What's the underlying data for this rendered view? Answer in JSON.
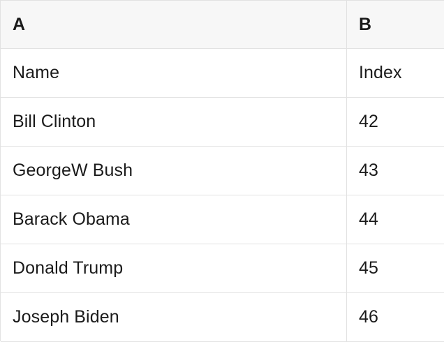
{
  "table": {
    "header": [
      "A",
      "B"
    ],
    "rows": [
      [
        "Name",
        "Index"
      ],
      [
        "Bill Clinton",
        "42"
      ],
      [
        "GeorgeW Bush",
        "43"
      ],
      [
        "Barack Obama",
        "44"
      ],
      [
        "Donald Trump",
        "45"
      ],
      [
        "Joseph Biden",
        "46"
      ]
    ],
    "colors": {
      "header_bg": "#f7f7f7",
      "border": "#e2e2e2",
      "text": "#1b1b1b",
      "row_bg": "#ffffff"
    }
  }
}
